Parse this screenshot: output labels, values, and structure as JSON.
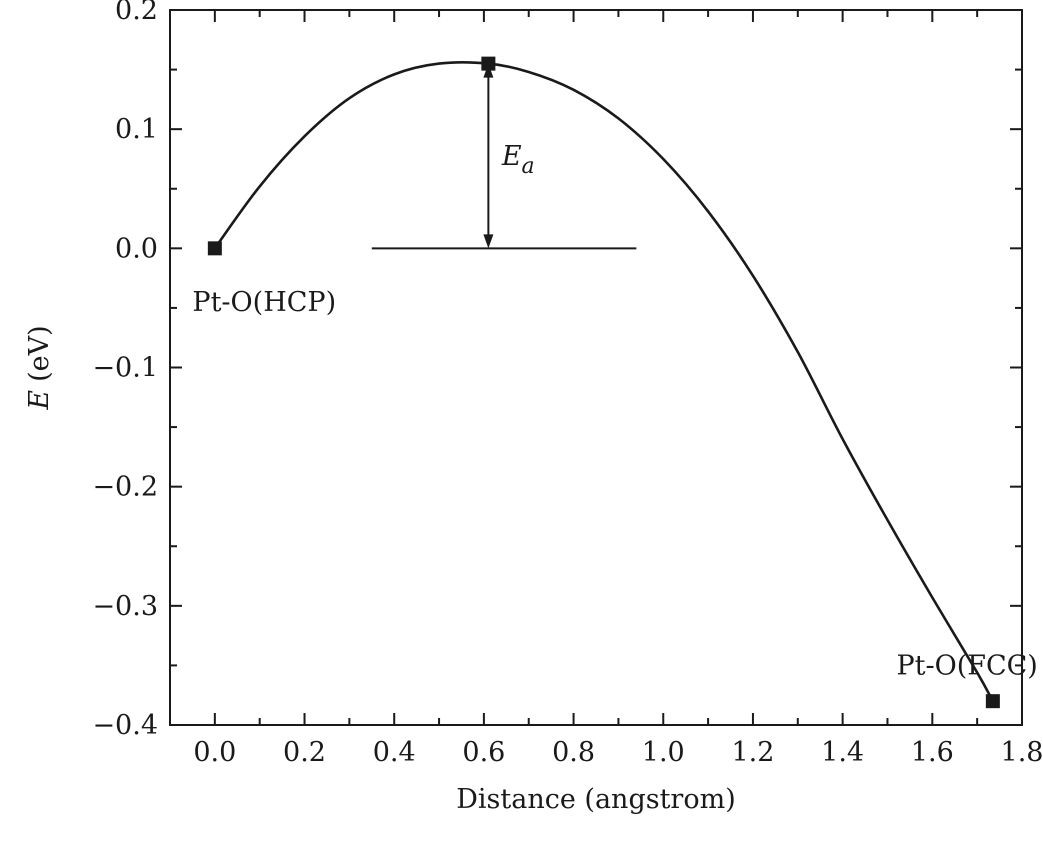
{
  "chart_data": {
    "type": "line",
    "xlabel": "Distance (angstrom)",
    "ylabel": {
      "symbol": "E",
      "unit": "(eV)"
    },
    "xlim": [
      -0.1,
      1.8
    ],
    "ylim": [
      -0.4,
      0.2
    ],
    "xticks": [
      0.0,
      0.2,
      0.4,
      0.6,
      0.8,
      1.0,
      1.2,
      1.4,
      1.6,
      1.8
    ],
    "xtick_labels": [
      "0.0",
      "0.2",
      "0.4",
      "0.6",
      "0.8",
      "1.0",
      "1.2",
      "1.4",
      "1.6",
      "1.8"
    ],
    "yticks": [
      -0.4,
      -0.3,
      -0.2,
      -0.1,
      0.0,
      0.1,
      0.2
    ],
    "ytick_labels": [
      "−0.4",
      "−0.3",
      "−0.2",
      "−0.1",
      "0.0",
      "0.1",
      "0.2"
    ],
    "grid": false,
    "series": [
      {
        "curve": [
          [
            0.0,
            0.0
          ],
          [
            0.1,
            0.052
          ],
          [
            0.2,
            0.094
          ],
          [
            0.3,
            0.126
          ],
          [
            0.4,
            0.146
          ],
          [
            0.5,
            0.155
          ],
          [
            0.61,
            0.155
          ],
          [
            0.7,
            0.148
          ],
          [
            0.8,
            0.133
          ],
          [
            0.9,
            0.109
          ],
          [
            1.0,
            0.075
          ],
          [
            1.1,
            0.031
          ],
          [
            1.2,
            -0.023
          ],
          [
            1.3,
            -0.087
          ],
          [
            1.4,
            -0.16
          ],
          [
            1.5,
            -0.228
          ],
          [
            1.6,
            -0.293
          ],
          [
            1.7,
            -0.356
          ],
          [
            1.735,
            -0.38
          ]
        ],
        "markers": [
          [
            0.0,
            0.0
          ],
          [
            0.61,
            0.155
          ],
          [
            1.735,
            -0.38
          ]
        ]
      }
    ],
    "reference_line": {
      "y": 0.0,
      "x": [
        0.35,
        0.94
      ]
    },
    "activation_arrow": {
      "x": 0.61,
      "y_from": 0.0,
      "y_to": 0.155
    },
    "annotations": [
      {
        "text": "Pt-O(HCP)",
        "x": -0.05,
        "y": -0.045
      },
      {
        "text": "Pt-O(FCC)",
        "x": 1.52,
        "y": -0.35
      }
    ],
    "ea_label": {
      "main": "E",
      "sub": "a",
      "x": 0.64,
      "y": 0.07
    }
  }
}
